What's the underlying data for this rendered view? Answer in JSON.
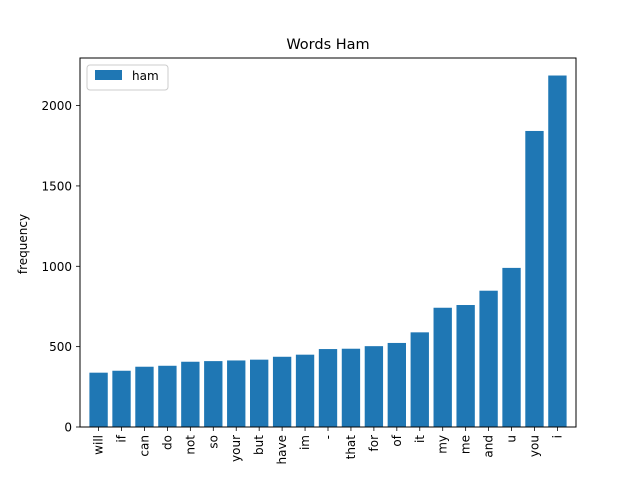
{
  "chart_data": {
    "type": "bar",
    "title": "Words Ham",
    "xlabel": "",
    "ylabel": "frequency",
    "categories": [
      "will",
      "if",
      "can",
      "do",
      "not",
      "so",
      "your",
      "but",
      "have",
      "im",
      "-",
      "that",
      "for",
      "of",
      "it",
      "my",
      "me",
      "and",
      "u",
      "you",
      "i"
    ],
    "series": [
      {
        "name": "ham",
        "color": "#1f77b4",
        "values": [
          338,
          350,
          375,
          381,
          406,
          410,
          414,
          419,
          437,
          450,
          485,
          487,
          503,
          523,
          589,
          742,
          759,
          848,
          990,
          1842,
          2187
        ]
      }
    ],
    "ylim": [
      0,
      2296
    ],
    "yticks": [
      0,
      500,
      1000,
      1500,
      2000
    ],
    "grid": false,
    "legend_position": "top-left"
  }
}
